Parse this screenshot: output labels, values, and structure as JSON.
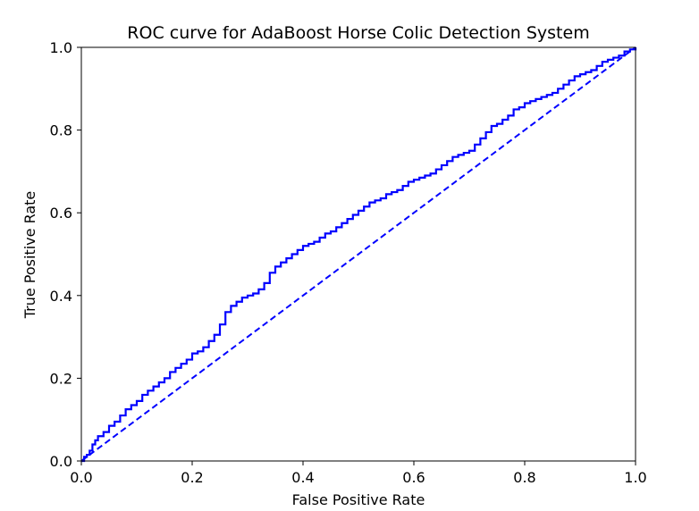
{
  "chart_data": {
    "type": "line",
    "title": "ROC curve for AdaBoost Horse Colic Detection System",
    "xlabel": "False Positive Rate",
    "ylabel": "True Positive Rate",
    "xlim": [
      0.0,
      1.0
    ],
    "ylim": [
      0.0,
      1.0
    ],
    "xticks": [
      "0.0",
      "0.2",
      "0.4",
      "0.6",
      "0.8",
      "1.0"
    ],
    "yticks": [
      "0.0",
      "0.2",
      "0.4",
      "0.6",
      "0.8",
      "1.0"
    ],
    "grid": false,
    "legend": "none",
    "series": [
      {
        "role": "roc-curve",
        "style": "solid-step",
        "color": "#0000ff",
        "x": [
          0.0,
          0.005,
          0.01,
          0.015,
          0.02,
          0.025,
          0.03,
          0.04,
          0.05,
          0.06,
          0.07,
          0.08,
          0.09,
          0.1,
          0.11,
          0.12,
          0.13,
          0.14,
          0.15,
          0.16,
          0.17,
          0.18,
          0.19,
          0.2,
          0.21,
          0.22,
          0.23,
          0.24,
          0.25,
          0.26,
          0.27,
          0.28,
          0.29,
          0.3,
          0.31,
          0.32,
          0.33,
          0.34,
          0.35,
          0.36,
          0.37,
          0.38,
          0.39,
          0.4,
          0.41,
          0.42,
          0.43,
          0.44,
          0.45,
          0.46,
          0.47,
          0.48,
          0.49,
          0.5,
          0.51,
          0.52,
          0.53,
          0.54,
          0.55,
          0.56,
          0.57,
          0.58,
          0.59,
          0.6,
          0.61,
          0.62,
          0.63,
          0.64,
          0.65,
          0.66,
          0.67,
          0.68,
          0.69,
          0.7,
          0.71,
          0.72,
          0.73,
          0.74,
          0.75,
          0.76,
          0.77,
          0.78,
          0.79,
          0.8,
          0.81,
          0.82,
          0.83,
          0.84,
          0.85,
          0.86,
          0.87,
          0.88,
          0.89,
          0.9,
          0.91,
          0.92,
          0.93,
          0.94,
          0.95,
          0.96,
          0.97,
          0.98,
          0.99,
          1.0
        ],
        "y": [
          0.0,
          0.01,
          0.015,
          0.025,
          0.04,
          0.05,
          0.06,
          0.07,
          0.085,
          0.095,
          0.11,
          0.125,
          0.135,
          0.145,
          0.16,
          0.17,
          0.18,
          0.19,
          0.2,
          0.215,
          0.225,
          0.235,
          0.245,
          0.26,
          0.265,
          0.275,
          0.29,
          0.305,
          0.33,
          0.36,
          0.375,
          0.385,
          0.395,
          0.4,
          0.405,
          0.415,
          0.43,
          0.455,
          0.47,
          0.48,
          0.49,
          0.5,
          0.51,
          0.52,
          0.525,
          0.53,
          0.54,
          0.55,
          0.555,
          0.565,
          0.575,
          0.585,
          0.595,
          0.605,
          0.615,
          0.625,
          0.63,
          0.635,
          0.645,
          0.65,
          0.655,
          0.665,
          0.675,
          0.68,
          0.685,
          0.69,
          0.695,
          0.705,
          0.715,
          0.725,
          0.735,
          0.74,
          0.745,
          0.75,
          0.765,
          0.78,
          0.795,
          0.81,
          0.815,
          0.825,
          0.835,
          0.85,
          0.855,
          0.865,
          0.87,
          0.875,
          0.88,
          0.885,
          0.89,
          0.9,
          0.91,
          0.92,
          0.93,
          0.935,
          0.94,
          0.945,
          0.955,
          0.965,
          0.97,
          0.975,
          0.98,
          0.99,
          0.995,
          1.0
        ]
      },
      {
        "role": "chance-diagonal",
        "style": "dashed",
        "color": "#0000ff",
        "x": [
          0.0,
          1.0
        ],
        "y": [
          0.0,
          1.0
        ]
      }
    ]
  }
}
